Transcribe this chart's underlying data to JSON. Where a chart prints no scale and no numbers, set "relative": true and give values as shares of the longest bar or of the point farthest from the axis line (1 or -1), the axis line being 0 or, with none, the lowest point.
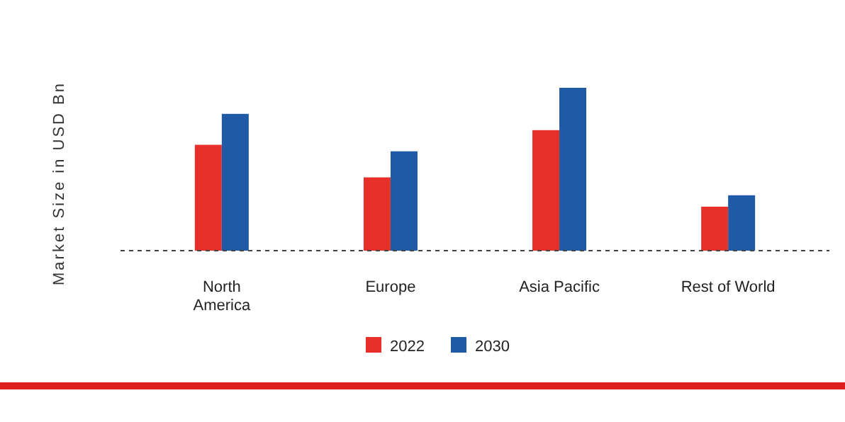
{
  "chart_data": {
    "type": "bar",
    "ylabel": "Market Size in USD Bn",
    "relative": true,
    "legend": "bottom",
    "categories": [
      "North America",
      "Europe",
      "Asia Pacific",
      "Rest of World"
    ],
    "series": [
      {
        "name": "2022",
        "color": "#e8302a",
        "values": [
          0.65,
          0.45,
          0.74,
          0.27
        ]
      },
      {
        "name": "2030",
        "color": "#1f5aa6",
        "values": [
          0.84,
          0.61,
          1,
          0.34
        ]
      }
    ]
  }
}
